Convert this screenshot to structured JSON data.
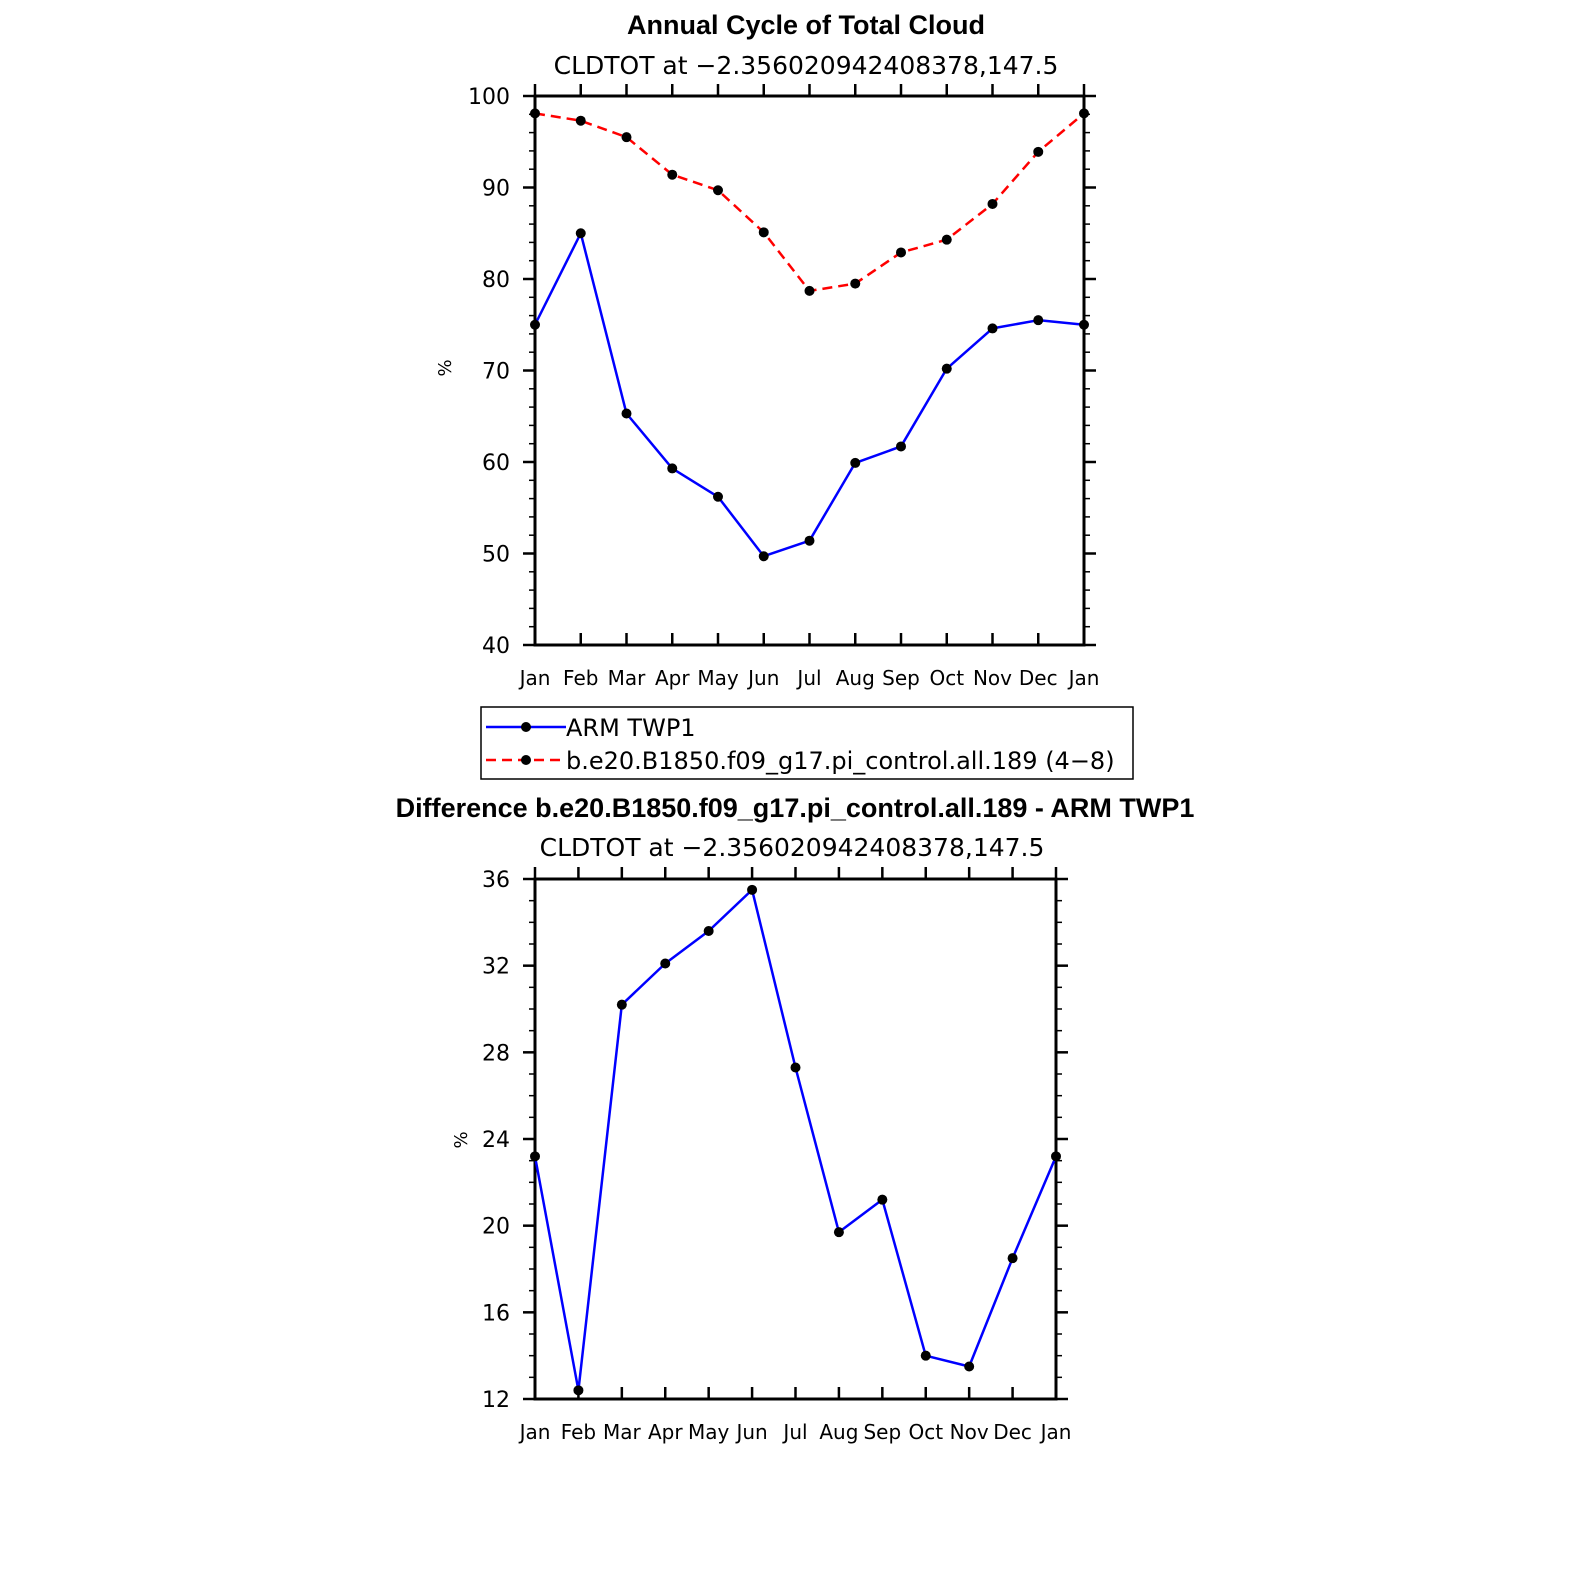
{
  "chart_data": [
    {
      "type": "line",
      "title": "Annual Cycle of Total Cloud",
      "subtitle": "CLDTOT at −2.356020942408378,147.5",
      "xlabel": "",
      "ylabel": "%",
      "categories": [
        "Jan",
        "Feb",
        "Mar",
        "Apr",
        "May",
        "Jun",
        "Jul",
        "Aug",
        "Sep",
        "Oct",
        "Nov",
        "Dec",
        "Jan"
      ],
      "ylim": [
        40,
        100
      ],
      "yticks": [
        40,
        50,
        60,
        70,
        80,
        90,
        100
      ],
      "series": [
        {
          "name": "ARM TWP1",
          "color": "#0000ff",
          "dash": "solid",
          "values": [
            75.0,
            85.0,
            65.3,
            59.3,
            56.2,
            49.7,
            51.4,
            59.9,
            61.7,
            70.2,
            74.6,
            75.5,
            75.0
          ]
        },
        {
          "name": "b.e20.B1850.f09_g17.pi_control.all.189 (4−8)",
          "color": "#ff0000",
          "dash": "dashed",
          "values": [
            98.1,
            97.3,
            95.5,
            91.4,
            89.7,
            85.1,
            78.7,
            79.5,
            82.9,
            84.3,
            88.2,
            93.9,
            98.1
          ]
        }
      ],
      "legend": "below"
    },
    {
      "type": "line",
      "title": "Difference b.e20.B1850.f09_g17.pi_control.all.189 - ARM TWP1",
      "subtitle": "CLDTOT at −2.356020942408378,147.5",
      "xlabel": "",
      "ylabel": "%",
      "categories": [
        "Jan",
        "Feb",
        "Mar",
        "Apr",
        "May",
        "Jun",
        "Jul",
        "Aug",
        "Sep",
        "Oct",
        "Nov",
        "Dec",
        "Jan"
      ],
      "ylim": [
        12,
        36
      ],
      "yticks": [
        12,
        16,
        20,
        24,
        28,
        32,
        36
      ],
      "series": [
        {
          "name": "Difference",
          "color": "#0000ff",
          "dash": "solid",
          "values": [
            23.2,
            12.4,
            30.2,
            32.1,
            33.6,
            35.5,
            27.3,
            19.7,
            21.2,
            14.0,
            13.5,
            18.5,
            23.2
          ]
        }
      ]
    }
  ]
}
